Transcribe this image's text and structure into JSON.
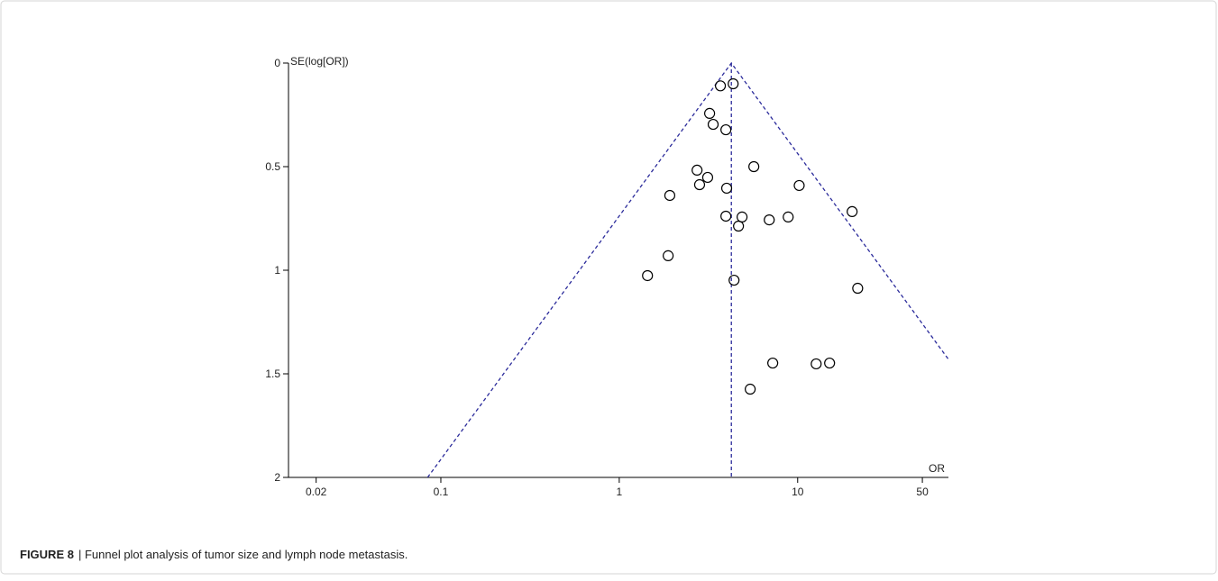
{
  "chart_data": {
    "type": "scatter",
    "y_axis_label": "SE(log[OR])",
    "x_axis_label": "OR",
    "x_log": true,
    "y_inverted": true,
    "xlim": [
      0.014,
      70
    ],
    "ylim": [
      0,
      2
    ],
    "xticks": [
      0.02,
      0.1,
      1,
      10,
      50
    ],
    "yticks": [
      0,
      0.5,
      1,
      1.5,
      2
    ],
    "marker_color": "#000000",
    "line_color": "#2b2b9b",
    "series": [
      {
        "x": [
          3.69,
          4.35,
          3.21,
          3.36,
          3.96,
          5.68,
          2.73,
          3.13,
          2.82,
          4.0,
          10.2,
          1.92,
          20.2,
          3.96,
          4.88,
          6.93,
          8.85,
          4.66,
          1.88,
          1.44,
          4.4,
          21.7,
          7.25,
          12.7,
          15.1,
          5.42
        ],
        "values": [
          0.11,
          0.1,
          0.243,
          0.296,
          0.322,
          0.5,
          0.517,
          0.552,
          0.587,
          0.604,
          0.591,
          0.639,
          0.717,
          0.739,
          0.743,
          0.757,
          0.743,
          0.787,
          0.93,
          1.026,
          1.048,
          1.087,
          1.448,
          1.452,
          1.448,
          1.574
        ]
      }
    ],
    "reference_lines": [
      {
        "x": [
          0.0843,
          4.25,
          70
        ],
        "values": [
          2,
          0,
          1.43
        ]
      },
      {
        "x": [
          4.25,
          4.25
        ],
        "values": [
          0,
          2
        ]
      }
    ]
  },
  "caption": {
    "label": "FIGURE 8",
    "text": "| Funnel plot analysis of tumor size and lymph node metastasis."
  }
}
